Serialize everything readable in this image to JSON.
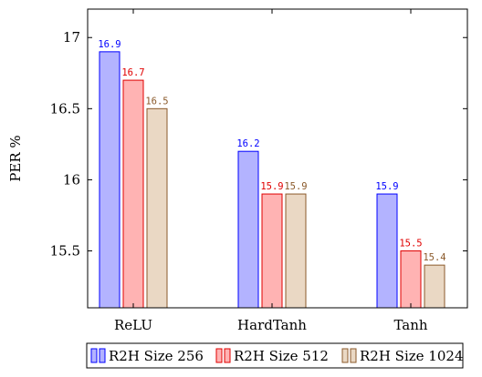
{
  "chart_data": {
    "type": "bar",
    "categories": [
      "ReLU",
      "HardTanh",
      "Tanh"
    ],
    "series": [
      {
        "name": "R2H Size 256",
        "values": [
          16.9,
          16.2,
          15.9
        ],
        "fill": "#b3b3ff",
        "stroke": "#0000ff",
        "label_color": "#0000ff"
      },
      {
        "name": "R2H Size 512",
        "values": [
          16.7,
          15.9,
          15.5
        ],
        "fill": "#ffb3b3",
        "stroke": "#e00000",
        "label_color": "#e00000"
      },
      {
        "name": "R2H Size 1024",
        "values": [
          16.5,
          15.9,
          15.4
        ],
        "fill": "#ead8c4",
        "stroke": "#8b5a2b",
        "label_color": "#8b5a2b"
      }
    ],
    "data_labels": [
      [
        "16.9",
        "16.2",
        "15.9"
      ],
      [
        "16.7",
        "15.9",
        "15.5"
      ],
      [
        "16.5",
        "15.9",
        "15.4"
      ]
    ],
    "xlabel": "",
    "ylabel": "PER %",
    "ylim": [
      15.1,
      17.2
    ],
    "yticks": [
      15.5,
      16,
      16.5,
      17
    ],
    "ytick_labels": [
      "15.5",
      "16",
      "16.5",
      "17"
    ],
    "grid": false,
    "legend_position": "bottom"
  }
}
